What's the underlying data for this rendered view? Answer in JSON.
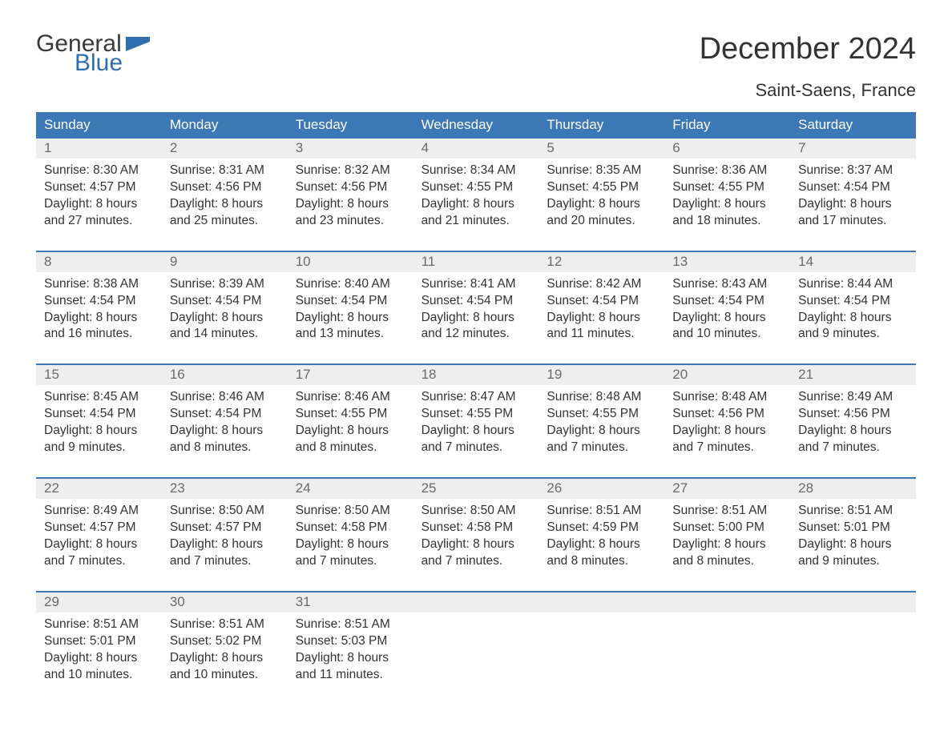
{
  "brand": {
    "line1": "General",
    "line2": "Blue",
    "icon_color": "#2f6fb0",
    "text_color": "#3a3a3a"
  },
  "title": "December 2024",
  "subtitle": "Saint-Saens, France",
  "colors": {
    "header_bg": "#3b78b5",
    "header_text": "#ffffff",
    "daynum_bg": "#eeeeee",
    "daynum_text": "#6a6a6a",
    "body_text": "#333333",
    "week_border": "#3b78b5",
    "page_bg": "#ffffff"
  },
  "layout": {
    "type": "calendar-table",
    "columns": 7,
    "rows": 5,
    "font_family": "Arial",
    "title_fontsize": 38,
    "subtitle_fontsize": 22,
    "header_fontsize": 17,
    "daynum_fontsize": 17,
    "cell_fontsize": 15.5
  },
  "weekdays": [
    "Sunday",
    "Monday",
    "Tuesday",
    "Wednesday",
    "Thursday",
    "Friday",
    "Saturday"
  ],
  "weeks": [
    [
      {
        "n": "1",
        "sunrise": "Sunrise: 8:30 AM",
        "sunset": "Sunset: 4:57 PM",
        "d1": "Daylight: 8 hours",
        "d2": "and 27 minutes."
      },
      {
        "n": "2",
        "sunrise": "Sunrise: 8:31 AM",
        "sunset": "Sunset: 4:56 PM",
        "d1": "Daylight: 8 hours",
        "d2": "and 25 minutes."
      },
      {
        "n": "3",
        "sunrise": "Sunrise: 8:32 AM",
        "sunset": "Sunset: 4:56 PM",
        "d1": "Daylight: 8 hours",
        "d2": "and 23 minutes."
      },
      {
        "n": "4",
        "sunrise": "Sunrise: 8:34 AM",
        "sunset": "Sunset: 4:55 PM",
        "d1": "Daylight: 8 hours",
        "d2": "and 21 minutes."
      },
      {
        "n": "5",
        "sunrise": "Sunrise: 8:35 AM",
        "sunset": "Sunset: 4:55 PM",
        "d1": "Daylight: 8 hours",
        "d2": "and 20 minutes."
      },
      {
        "n": "6",
        "sunrise": "Sunrise: 8:36 AM",
        "sunset": "Sunset: 4:55 PM",
        "d1": "Daylight: 8 hours",
        "d2": "and 18 minutes."
      },
      {
        "n": "7",
        "sunrise": "Sunrise: 8:37 AM",
        "sunset": "Sunset: 4:54 PM",
        "d1": "Daylight: 8 hours",
        "d2": "and 17 minutes."
      }
    ],
    [
      {
        "n": "8",
        "sunrise": "Sunrise: 8:38 AM",
        "sunset": "Sunset: 4:54 PM",
        "d1": "Daylight: 8 hours",
        "d2": "and 16 minutes."
      },
      {
        "n": "9",
        "sunrise": "Sunrise: 8:39 AM",
        "sunset": "Sunset: 4:54 PM",
        "d1": "Daylight: 8 hours",
        "d2": "and 14 minutes."
      },
      {
        "n": "10",
        "sunrise": "Sunrise: 8:40 AM",
        "sunset": "Sunset: 4:54 PM",
        "d1": "Daylight: 8 hours",
        "d2": "and 13 minutes."
      },
      {
        "n": "11",
        "sunrise": "Sunrise: 8:41 AM",
        "sunset": "Sunset: 4:54 PM",
        "d1": "Daylight: 8 hours",
        "d2": "and 12 minutes."
      },
      {
        "n": "12",
        "sunrise": "Sunrise: 8:42 AM",
        "sunset": "Sunset: 4:54 PM",
        "d1": "Daylight: 8 hours",
        "d2": "and 11 minutes."
      },
      {
        "n": "13",
        "sunrise": "Sunrise: 8:43 AM",
        "sunset": "Sunset: 4:54 PM",
        "d1": "Daylight: 8 hours",
        "d2": "and 10 minutes."
      },
      {
        "n": "14",
        "sunrise": "Sunrise: 8:44 AM",
        "sunset": "Sunset: 4:54 PM",
        "d1": "Daylight: 8 hours",
        "d2": "and 9 minutes."
      }
    ],
    [
      {
        "n": "15",
        "sunrise": "Sunrise: 8:45 AM",
        "sunset": "Sunset: 4:54 PM",
        "d1": "Daylight: 8 hours",
        "d2": "and 9 minutes."
      },
      {
        "n": "16",
        "sunrise": "Sunrise: 8:46 AM",
        "sunset": "Sunset: 4:54 PM",
        "d1": "Daylight: 8 hours",
        "d2": "and 8 minutes."
      },
      {
        "n": "17",
        "sunrise": "Sunrise: 8:46 AM",
        "sunset": "Sunset: 4:55 PM",
        "d1": "Daylight: 8 hours",
        "d2": "and 8 minutes."
      },
      {
        "n": "18",
        "sunrise": "Sunrise: 8:47 AM",
        "sunset": "Sunset: 4:55 PM",
        "d1": "Daylight: 8 hours",
        "d2": "and 7 minutes."
      },
      {
        "n": "19",
        "sunrise": "Sunrise: 8:48 AM",
        "sunset": "Sunset: 4:55 PM",
        "d1": "Daylight: 8 hours",
        "d2": "and 7 minutes."
      },
      {
        "n": "20",
        "sunrise": "Sunrise: 8:48 AM",
        "sunset": "Sunset: 4:56 PM",
        "d1": "Daylight: 8 hours",
        "d2": "and 7 minutes."
      },
      {
        "n": "21",
        "sunrise": "Sunrise: 8:49 AM",
        "sunset": "Sunset: 4:56 PM",
        "d1": "Daylight: 8 hours",
        "d2": "and 7 minutes."
      }
    ],
    [
      {
        "n": "22",
        "sunrise": "Sunrise: 8:49 AM",
        "sunset": "Sunset: 4:57 PM",
        "d1": "Daylight: 8 hours",
        "d2": "and 7 minutes."
      },
      {
        "n": "23",
        "sunrise": "Sunrise: 8:50 AM",
        "sunset": "Sunset: 4:57 PM",
        "d1": "Daylight: 8 hours",
        "d2": "and 7 minutes."
      },
      {
        "n": "24",
        "sunrise": "Sunrise: 8:50 AM",
        "sunset": "Sunset: 4:58 PM",
        "d1": "Daylight: 8 hours",
        "d2": "and 7 minutes."
      },
      {
        "n": "25",
        "sunrise": "Sunrise: 8:50 AM",
        "sunset": "Sunset: 4:58 PM",
        "d1": "Daylight: 8 hours",
        "d2": "and 7 minutes."
      },
      {
        "n": "26",
        "sunrise": "Sunrise: 8:51 AM",
        "sunset": "Sunset: 4:59 PM",
        "d1": "Daylight: 8 hours",
        "d2": "and 8 minutes."
      },
      {
        "n": "27",
        "sunrise": "Sunrise: 8:51 AM",
        "sunset": "Sunset: 5:00 PM",
        "d1": "Daylight: 8 hours",
        "d2": "and 8 minutes."
      },
      {
        "n": "28",
        "sunrise": "Sunrise: 8:51 AM",
        "sunset": "Sunset: 5:01 PM",
        "d1": "Daylight: 8 hours",
        "d2": "and 9 minutes."
      }
    ],
    [
      {
        "n": "29",
        "sunrise": "Sunrise: 8:51 AM",
        "sunset": "Sunset: 5:01 PM",
        "d1": "Daylight: 8 hours",
        "d2": "and 10 minutes."
      },
      {
        "n": "30",
        "sunrise": "Sunrise: 8:51 AM",
        "sunset": "Sunset: 5:02 PM",
        "d1": "Daylight: 8 hours",
        "d2": "and 10 minutes."
      },
      {
        "n": "31",
        "sunrise": "Sunrise: 8:51 AM",
        "sunset": "Sunset: 5:03 PM",
        "d1": "Daylight: 8 hours",
        "d2": "and 11 minutes."
      },
      null,
      null,
      null,
      null
    ]
  ]
}
